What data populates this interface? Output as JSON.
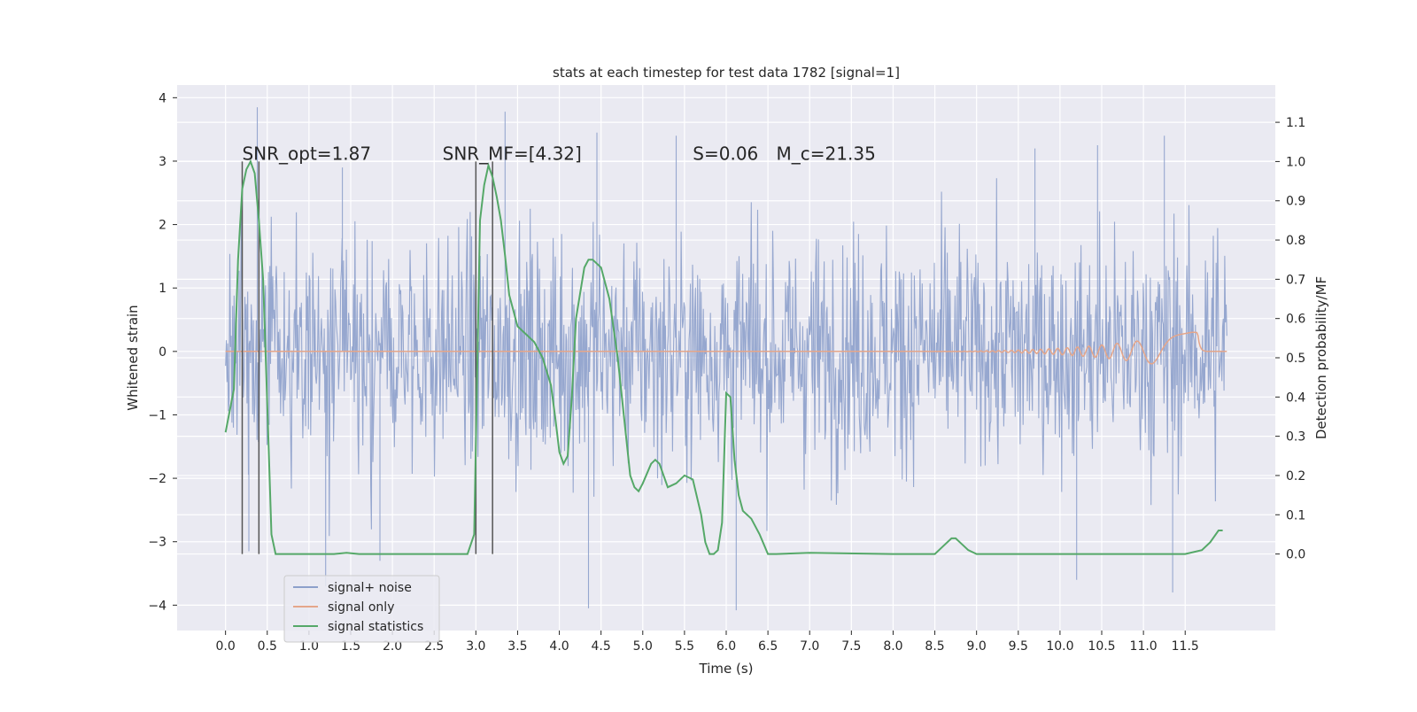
{
  "chart_data": {
    "type": "line",
    "title": "stats at each timestep for test data 1782 [signal=1]",
    "xlabel": "Time (s)",
    "ylabel_left": "Whitened strain",
    "ylabel_right": "Detection probability/MF",
    "xlim": [
      -0.58,
      12.58
    ],
    "ylim_left": [
      -4.4,
      4.2
    ],
    "ylim_right": [
      -0.195,
      1.195
    ],
    "x_ticks": [
      0.0,
      0.5,
      1.0,
      1.5,
      2.0,
      2.5,
      3.0,
      3.5,
      4.0,
      4.5,
      5.0,
      5.5,
      6.0,
      6.5,
      7.0,
      7.5,
      8.0,
      8.5,
      9.0,
      9.5,
      10.0,
      10.5,
      11.0,
      11.5
    ],
    "x_tick_labels": [
      "0.0",
      "0.5",
      "1.0",
      "1.5",
      "2.0",
      "2.5",
      "3.0",
      "3.5",
      "4.0",
      "4.5",
      "5.0",
      "5.5",
      "6.0",
      "6.5",
      "7.0",
      "7.5",
      "8.0",
      "8.5",
      "9.0",
      "9.5",
      "10.0",
      "10.5",
      "11.0",
      "11.5"
    ],
    "y_left_ticks": [
      -4,
      -3,
      -2,
      -1,
      0,
      1,
      2,
      3,
      4
    ],
    "y_left_tick_labels": [
      "−4",
      "−3",
      "−2",
      "−1",
      "0",
      "1",
      "2",
      "3",
      "4"
    ],
    "y_right_ticks": [
      0.0,
      0.1,
      0.2,
      0.3,
      0.4,
      0.5,
      0.6,
      0.7,
      0.8,
      0.9,
      1.0,
      1.1
    ],
    "y_right_tick_labels": [
      "0.0",
      "0.1",
      "0.2",
      "0.3",
      "0.4",
      "0.5",
      "0.6",
      "0.7",
      "0.8",
      "0.9",
      "1.0",
      "1.1"
    ],
    "grid": true,
    "legend_position": "lower-left",
    "colors": {
      "background": "#eaeaf2",
      "grid": "#ffffff",
      "signal_noise": "#8da0cb",
      "signal_only": "#e5a68a",
      "statistics": "#55a868",
      "vlines": "#555555"
    },
    "series": [
      {
        "name": "signal+ noise",
        "axis": "left",
        "description_x_range": [
          0.0,
          12.0
        ],
        "y_range": [
          -4.1,
          3.85
        ],
        "typical_band": [
          -1.9,
          2.2
        ]
      },
      {
        "name": "signal only",
        "axis": "left",
        "x_range": [
          0.0,
          12.0
        ],
        "chirp_peak_x": 11.65,
        "chirp_peak_amplitude": 0.32
      },
      {
        "name": "signal statistics",
        "axis": "right",
        "x": [
          0.0,
          0.1,
          0.15,
          0.2,
          0.25,
          0.3,
          0.35,
          0.4,
          0.45,
          0.5,
          0.55,
          0.6,
          1.0,
          1.3,
          1.45,
          1.6,
          2.0,
          2.5,
          2.9,
          2.98,
          3.05,
          3.1,
          3.15,
          3.2,
          3.25,
          3.3,
          3.35,
          3.4,
          3.5,
          3.6,
          3.7,
          3.8,
          3.9,
          3.95,
          4.0,
          4.05,
          4.1,
          4.15,
          4.2,
          4.3,
          4.35,
          4.4,
          4.5,
          4.6,
          4.7,
          4.8,
          4.85,
          4.9,
          4.95,
          5.0,
          5.1,
          5.15,
          5.2,
          5.3,
          5.4,
          5.5,
          5.6,
          5.7,
          5.75,
          5.8,
          5.85,
          5.9,
          5.95,
          6.0,
          6.05,
          6.1,
          6.15,
          6.2,
          6.3,
          6.4,
          6.5,
          6.6,
          7.0,
          8.0,
          8.5,
          8.6,
          8.7,
          8.75,
          8.8,
          8.9,
          9.0,
          9.1,
          9.3,
          10.0,
          11.0,
          11.5,
          11.7,
          11.8,
          11.9,
          11.95
        ],
        "y": [
          0.31,
          0.42,
          0.75,
          0.93,
          0.98,
          1.0,
          0.97,
          0.85,
          0.7,
          0.38,
          0.05,
          0.0,
          0.0,
          0.0,
          0.003,
          0.0,
          0.0,
          0.0,
          0.0,
          0.05,
          0.85,
          0.94,
          0.99,
          0.96,
          0.91,
          0.85,
          0.76,
          0.66,
          0.58,
          0.56,
          0.54,
          0.5,
          0.43,
          0.35,
          0.26,
          0.23,
          0.25,
          0.4,
          0.6,
          0.73,
          0.75,
          0.75,
          0.73,
          0.65,
          0.5,
          0.3,
          0.2,
          0.17,
          0.16,
          0.18,
          0.23,
          0.24,
          0.23,
          0.17,
          0.18,
          0.2,
          0.19,
          0.1,
          0.03,
          0.0,
          0.0,
          0.01,
          0.08,
          0.41,
          0.4,
          0.24,
          0.15,
          0.11,
          0.09,
          0.05,
          0.0,
          0.0,
          0.003,
          0.0,
          0.0,
          0.02,
          0.04,
          0.04,
          0.03,
          0.01,
          0.0,
          0.0,
          0.0,
          0.0,
          0.0,
          0.0,
          0.01,
          0.03,
          0.06,
          0.06
        ]
      }
    ],
    "vlines": [
      0.2,
      0.4,
      3.0,
      3.2
    ],
    "vline_range_right": [
      0.0,
      1.0
    ],
    "annotations": [
      {
        "id": "snr-opt",
        "text": "SNR_opt=1.87",
        "x": 0.2,
        "y_right": 1.0
      },
      {
        "id": "snr-mf",
        "text": "SNR_MF=[4.32]",
        "x": 2.6,
        "y_right": 1.0
      },
      {
        "id": "s-stat",
        "text": "S=0.06",
        "x": 5.6,
        "y_right": 1.0
      },
      {
        "id": "mc",
        "text": "M_c=21.35",
        "x": 6.6,
        "y_right": 1.0
      }
    ]
  }
}
